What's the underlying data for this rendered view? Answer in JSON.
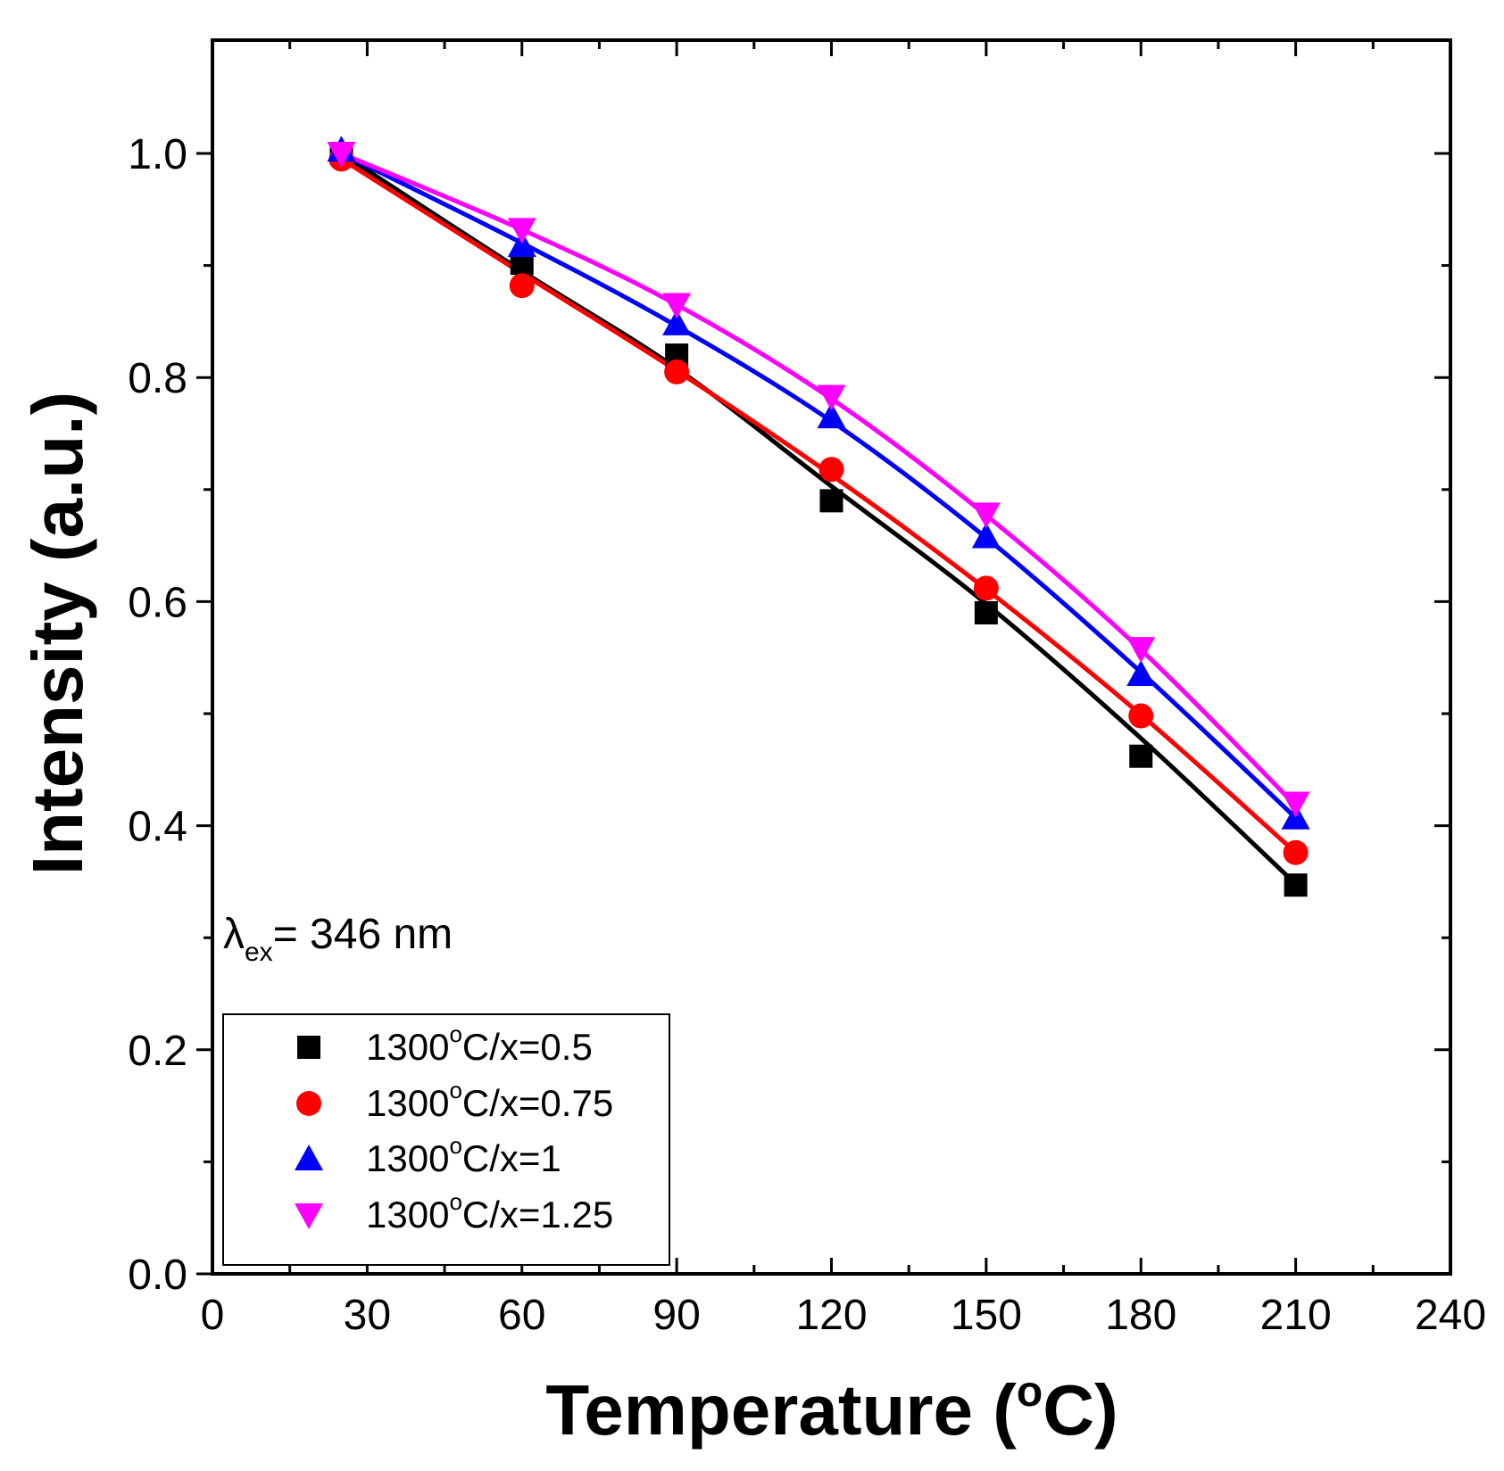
{
  "chart_data": {
    "type": "line",
    "title": "",
    "xlabel": "Temperature (",
    "xlabel_sup": "o",
    "xlabel_end": "C)",
    "ylabel": "Intensity (a.u.)",
    "xlim": [
      0,
      240
    ],
    "ylim": [
      0.0,
      1.1
    ],
    "xticks": [
      0,
      30,
      60,
      90,
      120,
      150,
      180,
      210,
      240
    ],
    "xtick_labels": [
      "0",
      "30",
      "60",
      "90",
      "120",
      "150",
      "180",
      "210",
      "240"
    ],
    "yticks": [
      0.0,
      0.2,
      0.4,
      0.6,
      0.8,
      1.0
    ],
    "ytick_labels": [
      "0.0",
      "0.2",
      "0.4",
      "0.6",
      "0.8",
      "1.0"
    ],
    "grid": false,
    "annotation": {
      "lambda": "λ",
      "sub": "ex",
      "text": "= 346 nm"
    },
    "legend_position": "bottom-left",
    "series": [
      {
        "name": "1300°C/x=0.5",
        "label_prefix": "1300",
        "label_sup": "o",
        "label_suffix": "C/x=0.5",
        "marker": "square",
        "color": "#000000",
        "x": [
          25,
          60,
          90,
          120,
          150,
          180,
          210
        ],
        "y": [
          1.0,
          0.902,
          0.82,
          0.69,
          0.59,
          0.462,
          0.347
        ],
        "fit_y": [
          1.0,
          0.895,
          0.808,
          0.703,
          0.598,
          0.478,
          0.348
        ]
      },
      {
        "name": "1300°C/x=0.75",
        "label_prefix": "1300",
        "label_sup": "o",
        "label_suffix": "C/x=0.75",
        "marker": "circle",
        "color": "#ff0000",
        "x": [
          25,
          60,
          90,
          120,
          150,
          180,
          210
        ],
        "y": [
          0.995,
          0.882,
          0.805,
          0.718,
          0.612,
          0.498,
          0.376
        ],
        "fit_y": [
          0.995,
          0.893,
          0.806,
          0.713,
          0.611,
          0.499,
          0.376
        ]
      },
      {
        "name": "1300°C/x=1",
        "label_prefix": "1300",
        "label_sup": "o",
        "label_suffix": "C/x=1",
        "marker": "triangle-up",
        "color": "#0000ff",
        "x": [
          25,
          60,
          90,
          120,
          150,
          180,
          210
        ],
        "y": [
          1.003,
          0.918,
          0.848,
          0.765,
          0.658,
          0.535,
          0.407
        ],
        "fit_y": [
          1.0,
          0.92,
          0.846,
          0.761,
          0.657,
          0.537,
          0.407
        ]
      },
      {
        "name": "1300°C/x=1.25",
        "label_prefix": "1300",
        "label_sup": "o",
        "label_suffix": "C/x=1.25",
        "marker": "triangle-down",
        "color": "#ff00ff",
        "x": [
          25,
          60,
          90,
          120,
          150,
          180,
          210
        ],
        "y": [
          1.0,
          0.932,
          0.865,
          0.783,
          0.678,
          0.558,
          0.42
        ],
        "fit_y": [
          1.0,
          0.932,
          0.865,
          0.781,
          0.677,
          0.557,
          0.418
        ]
      }
    ]
  }
}
